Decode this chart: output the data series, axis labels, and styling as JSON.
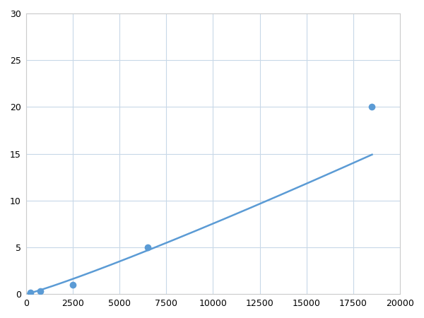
{
  "x": [
    250,
    750,
    2500,
    6500,
    18500
  ],
  "y": [
    0.2,
    0.3,
    1.0,
    5.0,
    20.0
  ],
  "line_color": "#5B9BD5",
  "marker_color": "#5B9BD5",
  "marker_size": 7,
  "line_width": 1.8,
  "xlim": [
    0,
    20000
  ],
  "ylim": [
    0,
    30
  ],
  "xticks": [
    0,
    2500,
    5000,
    7500,
    10000,
    12500,
    15000,
    17500,
    20000
  ],
  "yticks": [
    0,
    5,
    10,
    15,
    20,
    25,
    30
  ],
  "xtick_labels": [
    "0",
    "2500",
    "5000",
    "7500",
    "10000",
    "12500",
    "15000",
    "17500",
    "20000"
  ],
  "ytick_labels": [
    "0",
    "5",
    "10",
    "15",
    "20",
    "25",
    "30"
  ],
  "grid_color": "#c8d8e8",
  "background_color": "#ffffff",
  "figure_background": "#ffffff"
}
